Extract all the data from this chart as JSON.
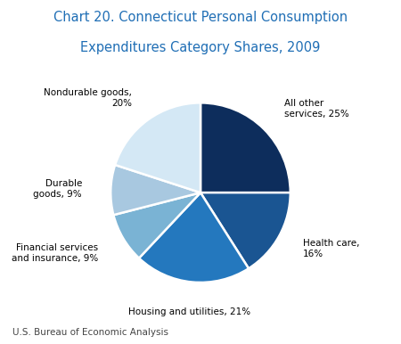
{
  "title_line1": "Chart 20. Connecticut Personal Consumption",
  "title_line2": "Expenditures Category Shares, 2009",
  "footnote": "U.S. Bureau of Economic Analysis",
  "slices": [
    {
      "label": "All other\nservices, 25%",
      "value": 25,
      "color": "#0d2d5c"
    },
    {
      "label": "Health care,\n16%",
      "value": 16,
      "color": "#1a5592"
    },
    {
      "label": "Housing and utilities, 21%",
      "value": 21,
      "color": "#2478be"
    },
    {
      "label": "Financial services\nand insurance, 9%",
      "value": 9,
      "color": "#7ab3d4"
    },
    {
      "label": "Durable\ngoods, 9%",
      "value": 9,
      "color": "#a8c8e0"
    },
    {
      "label": "Nondurable goods,\n20%",
      "value": 20,
      "color": "#d4e8f5"
    }
  ],
  "start_angle": 90,
  "title_color": "#1f6eb5",
  "label_color": "#000000",
  "footnote_color": "#444444",
  "background_color": "#ffffff",
  "label_positions": [
    {
      "lr": 1.35,
      "ha": "left",
      "va": "center"
    },
    {
      "lr": 1.35,
      "ha": "left",
      "va": "center"
    },
    {
      "lr": 1.35,
      "ha": "center",
      "va": "top"
    },
    {
      "lr": 1.35,
      "ha": "right",
      "va": "center"
    },
    {
      "lr": 1.35,
      "ha": "right",
      "va": "center"
    },
    {
      "lr": 1.35,
      "ha": "right",
      "va": "center"
    }
  ]
}
